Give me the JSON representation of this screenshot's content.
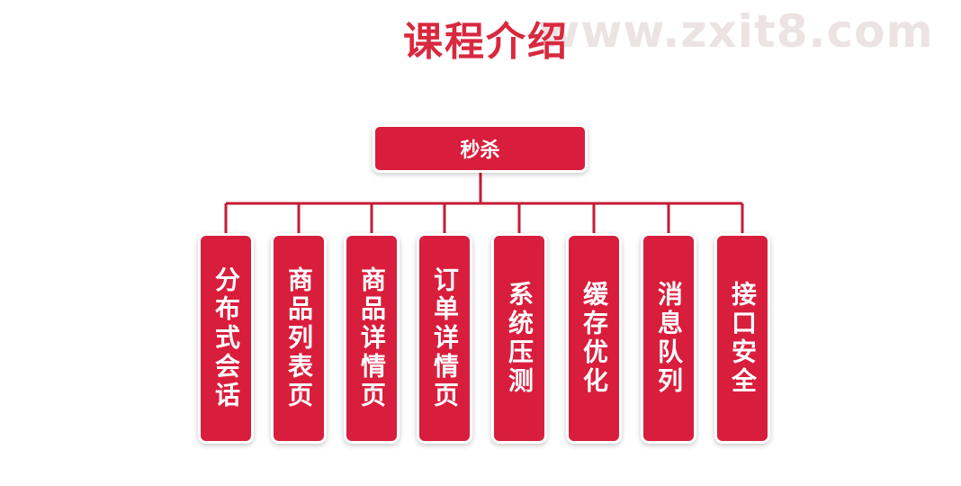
{
  "title": "课程介绍",
  "watermark": "www.zxit8.com",
  "colors": {
    "accent": "#d81e3c",
    "title": "#d8293f",
    "connector": "#c41c35"
  },
  "root": {
    "label": "秒杀"
  },
  "children": [
    {
      "label": "分布式会话"
    },
    {
      "label": "商品列表页"
    },
    {
      "label": "商品详情页"
    },
    {
      "label": "订单详情页"
    },
    {
      "label": "系统压测"
    },
    {
      "label": "缓存优化"
    },
    {
      "label": "消息队列"
    },
    {
      "label": "接口安全"
    }
  ]
}
